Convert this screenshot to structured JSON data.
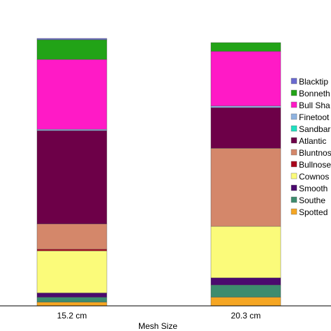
{
  "chart_data": {
    "type": "bar",
    "stacked": true,
    "normalized": true,
    "categories": [
      "15.2 cm",
      "20.3 cm"
    ],
    "xlabel": "Mesh Size",
    "ylabel": "",
    "ylim": [
      0,
      100
    ],
    "legend_position": "right",
    "grid": false,
    "series": [
      {
        "name": "Spotted",
        "color": "#f5a623",
        "values": [
          1.4,
          3.3
        ]
      },
      {
        "name": "Southern",
        "color": "#3d8c6e",
        "values": [
          1.8,
          4.6
        ]
      },
      {
        "name": "Smooth",
        "color": "#4b0a6e",
        "values": [
          1.6,
          2.7
        ]
      },
      {
        "name": "Cownose",
        "color": "#fbfb7a",
        "values": [
          15.6,
          19.5
        ]
      },
      {
        "name": "Bullnose",
        "color": "#a8051c",
        "values": [
          0.6,
          0.0
        ]
      },
      {
        "name": "Bluntnose",
        "color": "#d4876a",
        "values": [
          9.4,
          29.5
        ]
      },
      {
        "name": "Atlantic",
        "color": "#6d0048",
        "values": [
          34.6,
          15.4
        ]
      },
      {
        "name": "Sandbar",
        "color": "#1fe0c0",
        "values": [
          0.0,
          0.0
        ]
      },
      {
        "name": "Finetoot",
        "color": "#8fb3e0",
        "values": [
          0.5,
          0.6
        ]
      },
      {
        "name": "Bull Sha",
        "color": "#ff1ac6",
        "values": [
          25.9,
          20.7
        ]
      },
      {
        "name": "Bonneth",
        "color": "#22a317",
        "values": [
          7.3,
          3.3
        ]
      },
      {
        "name": "Blacktip",
        "color": "#6a6ad0",
        "values": [
          0.5,
          0.0
        ]
      }
    ],
    "legend_entries": [
      "Blacktip",
      "Bonneth",
      "Bull Sha",
      "Finetoot",
      "Sandbar",
      "Atlantic",
      "Bluntnos",
      "Bullnose",
      "Cownos",
      "Smooth",
      "Southe",
      "Spotted"
    ]
  }
}
